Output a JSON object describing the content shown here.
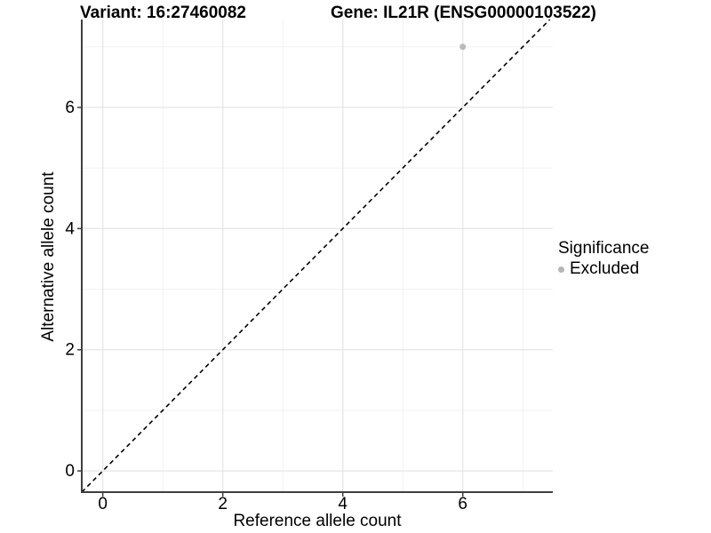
{
  "header": {
    "variant_title": "Variant: 16:27460082",
    "gene_title": "Gene: IL21R (ENSG00000103522)"
  },
  "axes": {
    "x_title": "Reference allele count",
    "y_title": "Alternative allele count"
  },
  "legend": {
    "title": "Significance",
    "items": [
      {
        "label": "Excluded",
        "marker_color": "#b5b5b5"
      }
    ]
  },
  "chart_data": {
    "type": "scatter",
    "title": "Variant: 16:27460082    Gene: IL21R (ENSG00000103522)",
    "xlabel": "Reference allele count",
    "ylabel": "Alternative allele count",
    "xlim": [
      -0.35,
      7.5
    ],
    "ylim": [
      -0.35,
      7.45
    ],
    "x_ticks": [
      0,
      2,
      4,
      6
    ],
    "y_ticks": [
      0,
      2,
      4,
      6
    ],
    "x_minor_ticks": [
      1,
      3,
      5,
      7
    ],
    "y_minor_ticks": [
      1,
      3,
      5,
      7
    ],
    "grid": true,
    "legend_position": "right",
    "series": [
      {
        "name": "Excluded",
        "color": "#b9b9b9",
        "points": [
          {
            "x": 6,
            "y": 7
          }
        ]
      }
    ],
    "reference_line": {
      "slope": 1,
      "intercept": 0,
      "style": "dashed",
      "color": "#000000"
    },
    "style": {
      "background": "#ffffff",
      "grid_major_color": "#e6e6e6",
      "grid_minor_color": "#f2f2f2",
      "axis_line_color": "#3f3f3f",
      "tick_label_color": "#000000",
      "point_radius": 3.5
    }
  }
}
